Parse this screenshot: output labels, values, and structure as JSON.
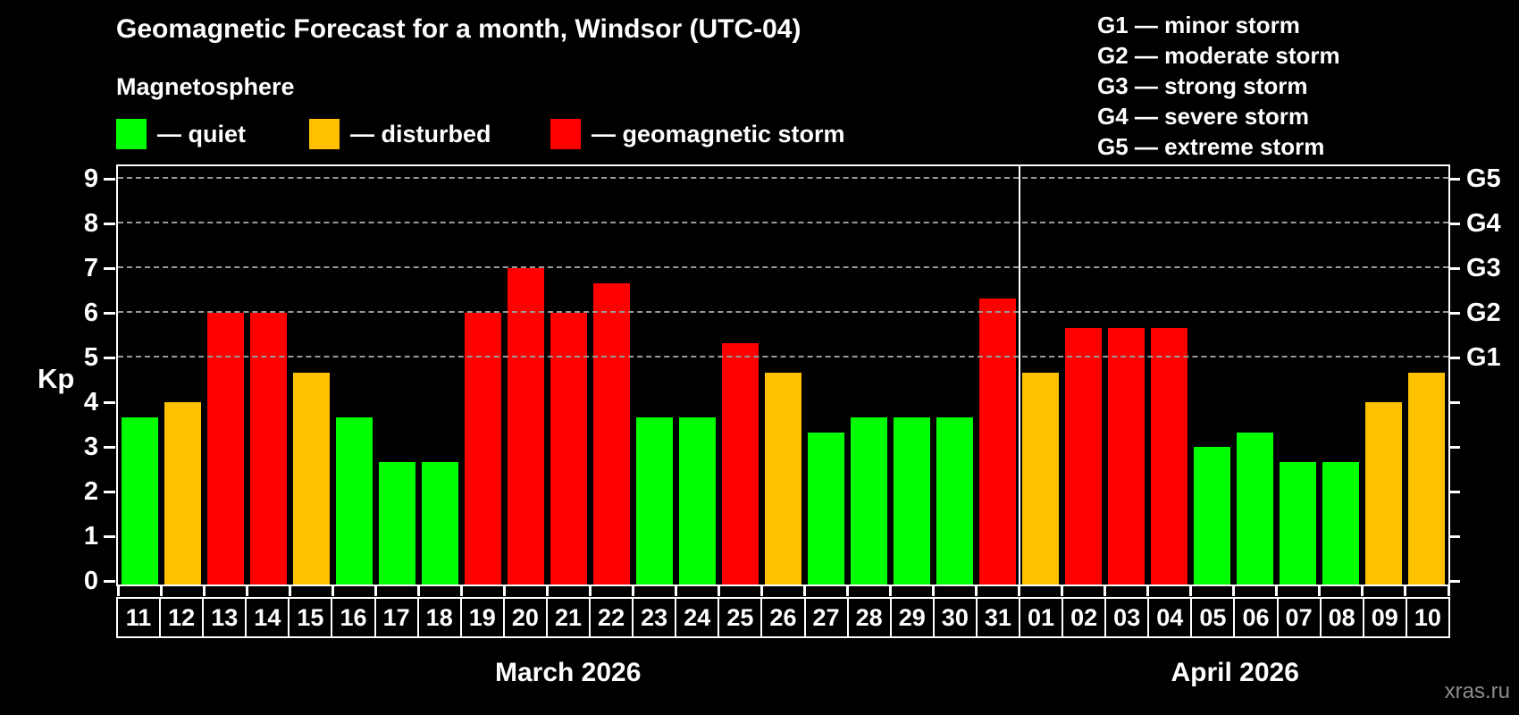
{
  "title": "Geomagnetic Forecast for a month, Windsor (UTC-04)",
  "subtitle": "Magnetosphere",
  "legend": {
    "items": [
      {
        "key": "quiet",
        "label": "— quiet",
        "color": "#00ff00"
      },
      {
        "key": "disturbed",
        "label": "— disturbed",
        "color": "#ffc000"
      },
      {
        "key": "storm",
        "label": "— geomagnetic storm",
        "color": "#ff0000"
      }
    ]
  },
  "storm_scale_legend": [
    "G1 — minor storm",
    "G2 — moderate storm",
    "G3 — strong storm",
    "G4 — severe storm",
    "G5 — extreme storm"
  ],
  "watermark": "xras.ru",
  "chart_data": {
    "type": "bar",
    "title": "Geomagnetic Forecast for a month, Windsor (UTC-04)",
    "ylabel": "Kp",
    "ylim": [
      0,
      9
    ],
    "yticks": [
      0,
      1,
      2,
      3,
      4,
      5,
      6,
      7,
      8,
      9
    ],
    "grid": "horizontal dashed lines at Kp 5-9 only",
    "gridlines_at_kp": [
      5,
      6,
      7,
      8,
      9
    ],
    "right_axis_labels": [
      {
        "label": "G1",
        "kp": 5
      },
      {
        "label": "G2",
        "kp": 6
      },
      {
        "label": "G3",
        "kp": 7
      },
      {
        "label": "G4",
        "kp": 8
      },
      {
        "label": "G5",
        "kp": 9
      }
    ],
    "colors": {
      "quiet": "#00ff00",
      "disturbed": "#ffc000",
      "storm": "#ff0000"
    },
    "legend_position": "top-left",
    "months": [
      {
        "label": "March 2026",
        "bars": [
          {
            "day": "11",
            "kp": 3.67,
            "status": "quiet"
          },
          {
            "day": "12",
            "kp": 4.0,
            "status": "disturbed"
          },
          {
            "day": "13",
            "kp": 6.0,
            "status": "storm"
          },
          {
            "day": "14",
            "kp": 6.0,
            "status": "storm"
          },
          {
            "day": "15",
            "kp": 4.67,
            "status": "disturbed"
          },
          {
            "day": "16",
            "kp": 3.67,
            "status": "quiet"
          },
          {
            "day": "17",
            "kp": 2.67,
            "status": "quiet"
          },
          {
            "day": "18",
            "kp": 2.67,
            "status": "quiet"
          },
          {
            "day": "19",
            "kp": 6.0,
            "status": "storm"
          },
          {
            "day": "20",
            "kp": 7.0,
            "status": "storm"
          },
          {
            "day": "21",
            "kp": 6.0,
            "status": "storm"
          },
          {
            "day": "22",
            "kp": 6.67,
            "status": "storm"
          },
          {
            "day": "23",
            "kp": 3.67,
            "status": "quiet"
          },
          {
            "day": "24",
            "kp": 3.67,
            "status": "quiet"
          },
          {
            "day": "25",
            "kp": 5.33,
            "status": "storm"
          },
          {
            "day": "26",
            "kp": 4.67,
            "status": "disturbed"
          },
          {
            "day": "27",
            "kp": 3.33,
            "status": "quiet"
          },
          {
            "day": "28",
            "kp": 3.67,
            "status": "quiet"
          },
          {
            "day": "29",
            "kp": 3.67,
            "status": "quiet"
          },
          {
            "day": "30",
            "kp": 3.67,
            "status": "quiet"
          },
          {
            "day": "31",
            "kp": 6.33,
            "status": "storm"
          }
        ]
      },
      {
        "label": "April 2026",
        "bars": [
          {
            "day": "01",
            "kp": 4.67,
            "status": "disturbed"
          },
          {
            "day": "02",
            "kp": 5.67,
            "status": "storm"
          },
          {
            "day": "03",
            "kp": 5.67,
            "status": "storm"
          },
          {
            "day": "04",
            "kp": 5.67,
            "status": "storm"
          },
          {
            "day": "05",
            "kp": 3.0,
            "status": "quiet"
          },
          {
            "day": "06",
            "kp": 3.33,
            "status": "quiet"
          },
          {
            "day": "07",
            "kp": 2.67,
            "status": "quiet"
          },
          {
            "day": "08",
            "kp": 2.67,
            "status": "quiet"
          },
          {
            "day": "09",
            "kp": 4.0,
            "status": "disturbed"
          },
          {
            "day": "10",
            "kp": 4.67,
            "status": "disturbed"
          }
        ]
      }
    ]
  }
}
